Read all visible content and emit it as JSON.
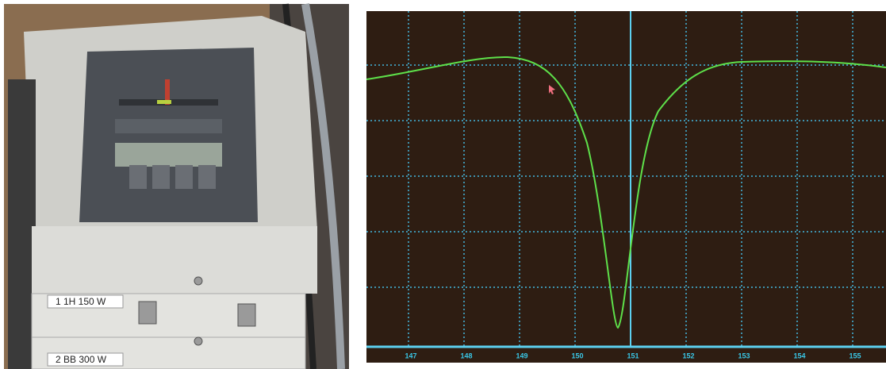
{
  "photo": {
    "labels": [
      "1 1H 150 W",
      "2 BB 300 W"
    ]
  },
  "scope": {
    "xticks": [
      147,
      148,
      149,
      150,
      151,
      152,
      153,
      154,
      155
    ]
  }
}
